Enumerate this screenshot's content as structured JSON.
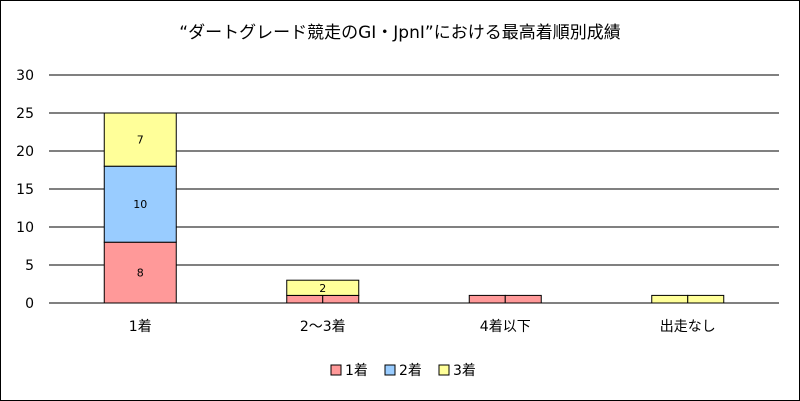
{
  "chart_data": {
    "type": "bar",
    "stacked": true,
    "title": "“ダートグレード競走のGI・JpnI”における最高着順別成績",
    "categories": [
      "1着",
      "2～3着",
      "4着以下",
      "出走なし"
    ],
    "series": [
      {
        "name": "1着",
        "color": "#ff9999",
        "values": [
          8,
          1,
          1,
          0
        ]
      },
      {
        "name": "2着",
        "color": "#99ccff",
        "values": [
          10,
          0,
          0,
          0
        ]
      },
      {
        "name": "3着",
        "color": "#ffff99",
        "values": [
          7,
          2,
          0,
          1
        ]
      }
    ],
    "data_labels": [
      [
        "8",
        "",
        "",
        ""
      ],
      [
        "10",
        "",
        "",
        ""
      ],
      [
        "7",
        "2",
        "",
        ""
      ]
    ],
    "ylim": [
      0,
      30
    ],
    "yticks": [
      0,
      5,
      10,
      15,
      20,
      25,
      30
    ],
    "grid": true,
    "legend_position": "bottom"
  }
}
